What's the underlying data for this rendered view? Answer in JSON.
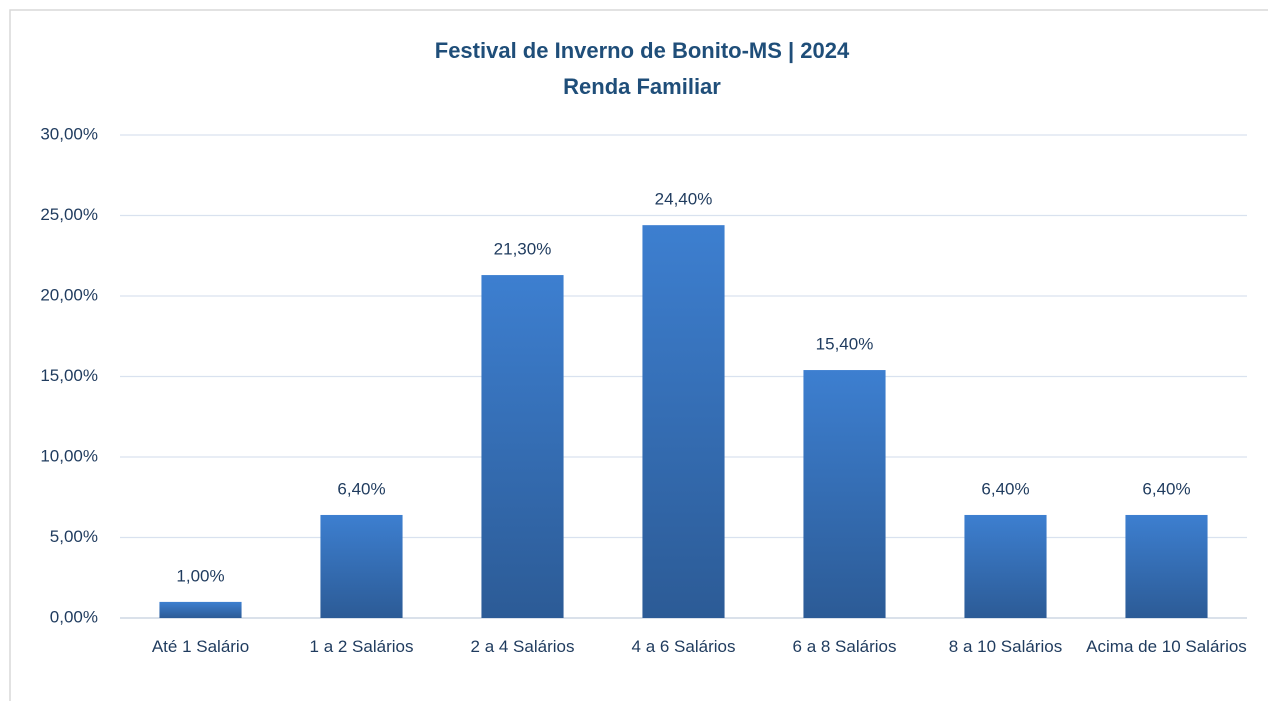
{
  "chart_data": {
    "type": "bar",
    "title": "Festival de Inverno de Bonito-MS | 2024",
    "subtitle": "Renda Familiar",
    "categories": [
      "Até 1 Salário",
      "1 a 2 Salários",
      "2 a 4 Salários",
      "4 a 6 Salários",
      "6 a 8 Salários",
      "8 a 10 Salários",
      "Acima de 10 Salários"
    ],
    "values": [
      1.0,
      6.4,
      21.3,
      24.4,
      15.4,
      6.4,
      6.4
    ],
    "value_labels": [
      "1,00%",
      "6,40%",
      "21,30%",
      "24,40%",
      "15,40%",
      "6,40%",
      "6,40%"
    ],
    "color": "#3d7fd0",
    "ylim": [
      0,
      30
    ],
    "yticks": [
      {
        "value": 0,
        "label": "0,00%"
      },
      {
        "value": 5,
        "label": "5,00%"
      },
      {
        "value": 10,
        "label": "10,00%"
      },
      {
        "value": 15,
        "label": "15,00%"
      },
      {
        "value": 20,
        "label": "20,00%"
      },
      {
        "value": 25,
        "label": "25,00%"
      },
      {
        "value": 30,
        "label": "30,00%"
      }
    ],
    "grid": true
  }
}
